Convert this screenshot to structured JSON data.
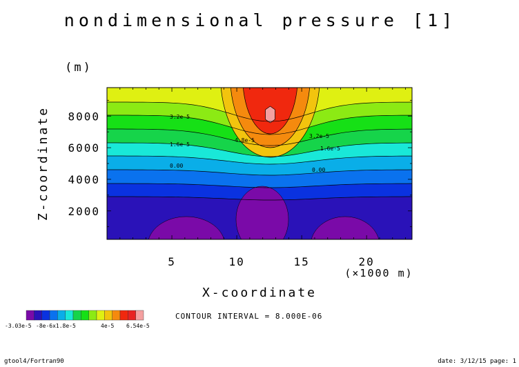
{
  "chart_data": {
    "type": "heatmap",
    "title": "nondimensional pressure [1]",
    "xlabel": "X-coordinate",
    "ylabel": "Z-coordinate",
    "x_units": "(×1000 m)",
    "y_units": "(m)",
    "xlim": [
      0,
      23.5
    ],
    "ylim": [
      200,
      9800
    ],
    "xticks": [
      "5",
      "10",
      "15",
      "20"
    ],
    "yticks": [
      "2000",
      "4000",
      "6000",
      "8000"
    ],
    "contour_labels": [
      "3.2e-5",
      "4.8e-5",
      "3.2e-5",
      "1.6e-5",
      "1.6e-5",
      "0.00",
      "0.00"
    ],
    "contour_interval_text": "CONTOUR INTERVAL = 8.000E-06",
    "colorbar": {
      "min_label": "-3.03e-5",
      "mid_label": "-8e-6x1.8e-5",
      "tick_label": "4e-5",
      "max_label": "6.54e-5",
      "colors": [
        "#7a0aa8",
        "#2a12b8",
        "#0a32e0",
        "#0a72ee",
        "#0aaee8",
        "#19e8d8",
        "#16d44a",
        "#16e016",
        "#8cea14",
        "#dff012",
        "#f2c40e",
        "#f58a0e",
        "#f0280e",
        "#e82222",
        "#f4a0a0"
      ]
    },
    "band_colors": [
      "#7a0aa8",
      "#2a12b8",
      "#0a32e0",
      "#0a72ee",
      "#0aaee8",
      "#19e8d8",
      "#16d44a",
      "#16e016",
      "#8cea14",
      "#dff012",
      "#f2c40e",
      "#f58a0e",
      "#f0280e",
      "#f4a0a0"
    ]
  },
  "footer": {
    "left": "gtool4/Fortran90",
    "right": "date: 3/12/15 page: 1"
  }
}
